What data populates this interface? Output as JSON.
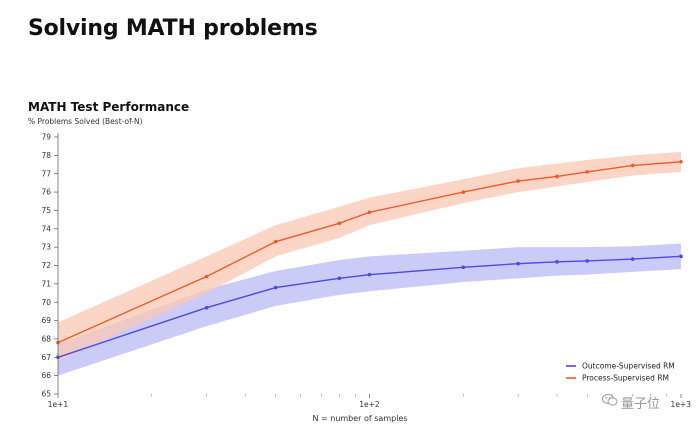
{
  "page": {
    "title": "Solving MATH problems"
  },
  "watermark": {
    "text": "量子位"
  },
  "chart_data": {
    "type": "line",
    "title": "MATH Test Performance",
    "ylabel": "% Problems Solved (Best-of-N)",
    "xlabel": "N = number of samples",
    "xscale": "log",
    "xlim": [
      10,
      1000
    ],
    "ylim": [
      65,
      79
    ],
    "xticks": [
      {
        "value": 10,
        "label": "1e+1"
      },
      {
        "value": 100,
        "label": "1e+2"
      },
      {
        "value": 1000,
        "label": "1e+3"
      }
    ],
    "yticks": [
      65,
      66,
      67,
      68,
      69,
      70,
      71,
      72,
      73,
      74,
      75,
      76,
      77,
      78,
      79
    ],
    "grid": false,
    "legend_position": "bottom-right",
    "series": [
      {
        "name": "Outcome-Supervised RM",
        "color": "#4a4ae6",
        "band_color": "#b9b9f5",
        "x": [
          10,
          30,
          50,
          80,
          100,
          200,
          300,
          400,
          500,
          700,
          1000
        ],
        "y": [
          67.0,
          69.7,
          70.8,
          71.3,
          71.5,
          71.9,
          72.1,
          72.2,
          72.25,
          72.35,
          72.5
        ],
        "lower": [
          66.0,
          68.7,
          69.8,
          70.4,
          70.6,
          71.1,
          71.3,
          71.45,
          71.5,
          71.65,
          71.8
        ],
        "upper": [
          67.7,
          70.7,
          71.7,
          72.3,
          72.5,
          72.8,
          73.0,
          73.0,
          73.0,
          73.05,
          73.2
        ]
      },
      {
        "name": "Process-Supervised RM",
        "color": "#f05a28",
        "band_color": "#f9c8b4",
        "x": [
          10,
          30,
          50,
          80,
          100,
          200,
          300,
          400,
          500,
          700,
          1000
        ],
        "y": [
          67.8,
          71.4,
          73.3,
          74.3,
          74.9,
          76.0,
          76.6,
          76.85,
          77.1,
          77.45,
          77.65
        ],
        "lower": [
          66.8,
          70.5,
          72.5,
          73.5,
          74.2,
          75.4,
          76.0,
          76.3,
          76.55,
          76.9,
          77.1
        ],
        "upper": [
          68.9,
          72.5,
          74.2,
          75.2,
          75.7,
          76.7,
          77.3,
          77.55,
          77.75,
          78.0,
          78.2
        ]
      }
    ]
  }
}
